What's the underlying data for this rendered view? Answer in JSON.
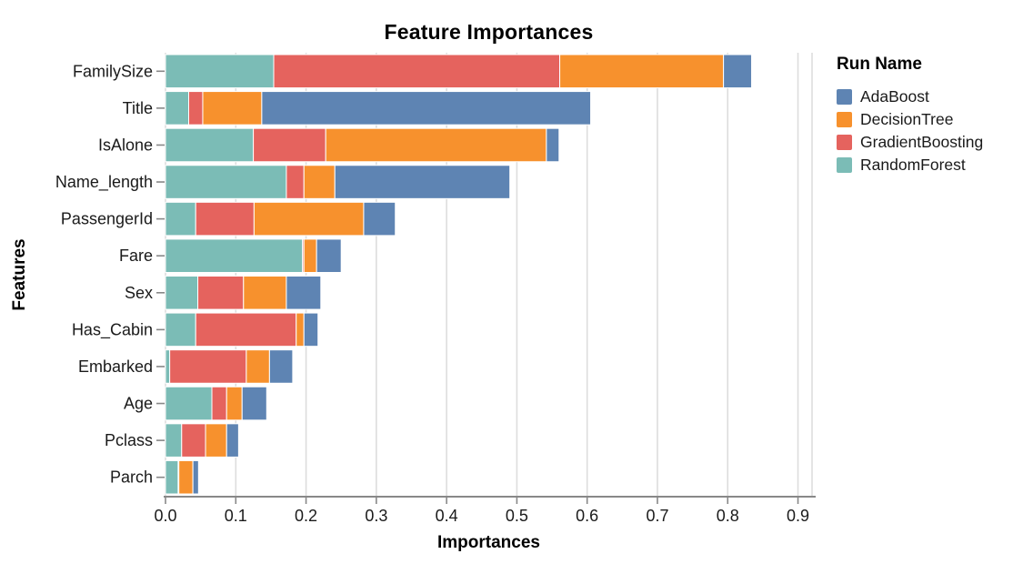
{
  "chart_data": {
    "type": "bar",
    "orientation": "horizontal",
    "stacked": true,
    "title": "Feature Importances",
    "xlabel": "Importances",
    "ylabel": "Features",
    "legend_title": "Run Name",
    "legend_position": "right",
    "grid": true,
    "xlim": [
      0,
      0.92
    ],
    "x_ticks": [
      "0.0",
      "0.1",
      "0.2",
      "0.3",
      "0.4",
      "0.5",
      "0.6",
      "0.7",
      "0.8",
      "0.9"
    ],
    "categories": [
      "FamilySize",
      "Title",
      "IsAlone",
      "Name_length",
      "PassengerId",
      "Fare",
      "Sex",
      "Has_Cabin",
      "Embarked",
      "Age",
      "Pclass",
      "Parch"
    ],
    "series": [
      {
        "name": "RandomForest",
        "color": "#7BBCB6",
        "values": [
          0.154,
          0.033,
          0.125,
          0.172,
          0.043,
          0.195,
          0.046,
          0.043,
          0.006,
          0.066,
          0.023,
          0.018
        ]
      },
      {
        "name": "GradientBoosting",
        "color": "#E5635E",
        "values": [
          0.407,
          0.02,
          0.103,
          0.025,
          0.083,
          0.002,
          0.065,
          0.143,
          0.109,
          0.021,
          0.034,
          0.001
        ]
      },
      {
        "name": "DecisionTree",
        "color": "#F7912D",
        "values": [
          0.233,
          0.084,
          0.314,
          0.044,
          0.156,
          0.018,
          0.061,
          0.011,
          0.033,
          0.022,
          0.03,
          0.02
        ]
      },
      {
        "name": "AdaBoost",
        "color": "#5E84B3",
        "values": [
          0.04,
          0.468,
          0.018,
          0.249,
          0.045,
          0.035,
          0.049,
          0.02,
          0.033,
          0.035,
          0.017,
          0.008
        ]
      }
    ],
    "legend_order": [
      "AdaBoost",
      "DecisionTree",
      "GradientBoosting",
      "RandomForest"
    ]
  },
  "style_colors": {
    "gridline": "#DDDDDD",
    "axis_line": "#888888",
    "tick_mark": "#888888",
    "text": "#1A1A1A",
    "background": "#FFFFFF",
    "segment_divider": "#FFFFFF"
  }
}
